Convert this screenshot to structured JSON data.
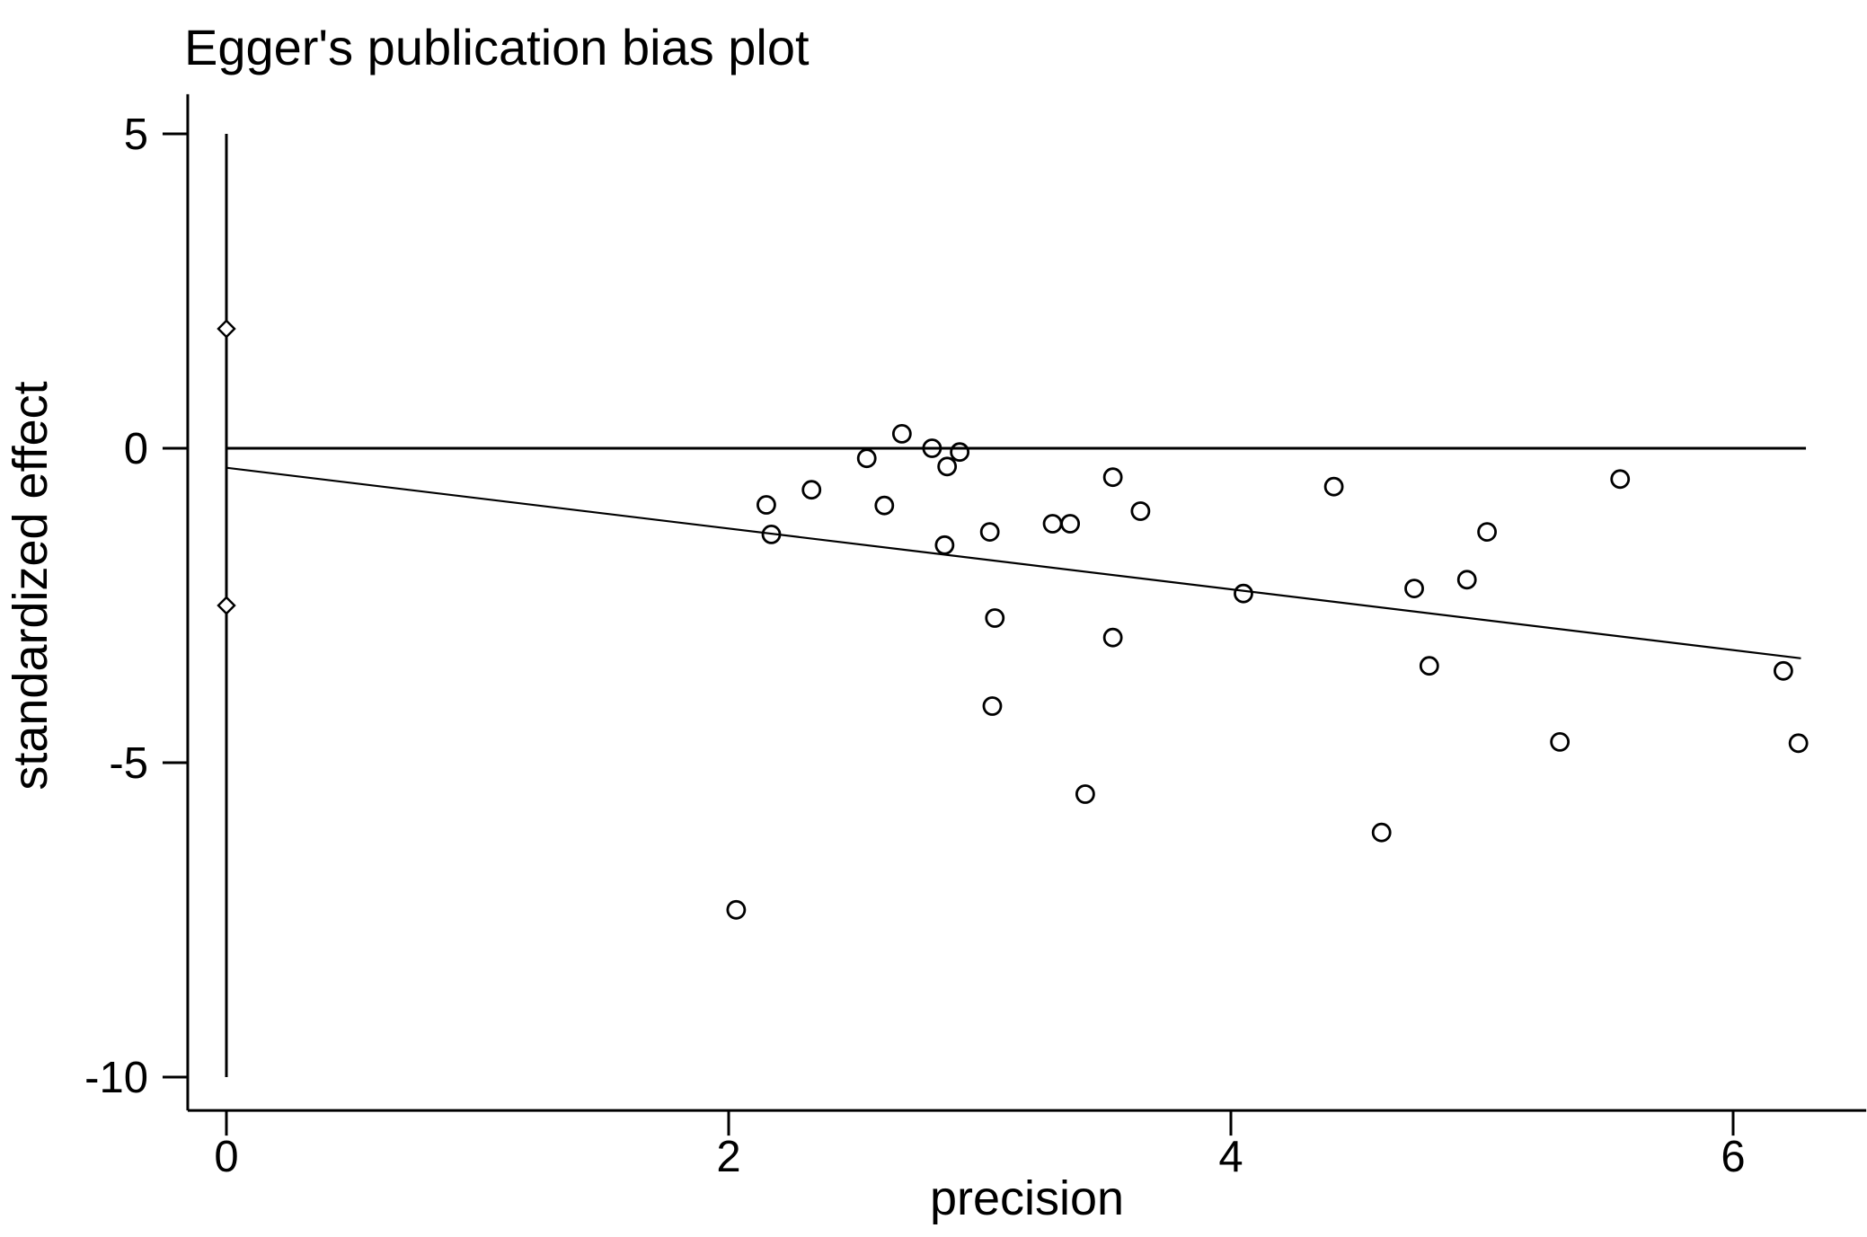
{
  "chart_data": {
    "type": "scatter",
    "title": "Egger's publication bias plot",
    "xlabel": "precision",
    "ylabel": "standardized effect",
    "xticks": [
      0,
      2,
      4,
      6
    ],
    "yticks": [
      5,
      0,
      -5,
      -10
    ],
    "xlim": [
      -0.154,
      6.53
    ],
    "ylim": [
      -10.53,
      5.63
    ],
    "grid": false,
    "legend": "none",
    "marker_color": "#000000",
    "background_color": "#ffffff",
    "points": [
      {
        "x": 2.69,
        "y": 0.23
      },
      {
        "x": 2.55,
        "y": -0.16
      },
      {
        "x": 2.81,
        "y": 0.0
      },
      {
        "x": 2.92,
        "y": -0.06
      },
      {
        "x": 2.87,
        "y": -0.29
      },
      {
        "x": 2.33,
        "y": -0.66
      },
      {
        "x": 2.62,
        "y": -0.91
      },
      {
        "x": 3.04,
        "y": -1.33
      },
      {
        "x": 3.29,
        "y": -1.2
      },
      {
        "x": 3.36,
        "y": -1.2
      },
      {
        "x": 2.86,
        "y": -1.54
      },
      {
        "x": 2.15,
        "y": -0.9
      },
      {
        "x": 2.17,
        "y": -1.37
      },
      {
        "x": 3.53,
        "y": -0.46
      },
      {
        "x": 3.64,
        "y": -1.0
      },
      {
        "x": 4.41,
        "y": -0.61
      },
      {
        "x": 5.55,
        "y": -0.49
      },
      {
        "x": 5.02,
        "y": -1.33
      },
      {
        "x": 4.94,
        "y": -2.09
      },
      {
        "x": 4.73,
        "y": -2.23
      },
      {
        "x": 3.06,
        "y": -2.7
      },
      {
        "x": 3.53,
        "y": -3.01
      },
      {
        "x": 4.05,
        "y": -2.31
      },
      {
        "x": 3.05,
        "y": -4.1
      },
      {
        "x": 3.42,
        "y": -5.5
      },
      {
        "x": 4.79,
        "y": -3.46
      },
      {
        "x": 5.31,
        "y": -4.67
      },
      {
        "x": 4.6,
        "y": -6.11
      },
      {
        "x": 6.2,
        "y": -3.54
      },
      {
        "x": 6.26,
        "y": -4.69
      },
      {
        "x": 2.03,
        "y": -7.34
      }
    ],
    "diamonds": [
      {
        "x": 0,
        "y": 1.9
      },
      {
        "x": 0,
        "y": -2.5
      }
    ],
    "ci_vertical_line": {
      "x": 0,
      "y1": -10,
      "y2": 5
    },
    "zero_horizontal_line": {
      "y": 0,
      "x1": 0,
      "x2": 6.29
    },
    "regression_line": {
      "x1": 0,
      "y1": -0.31,
      "x2": 6.27,
      "y2": -3.34
    }
  }
}
